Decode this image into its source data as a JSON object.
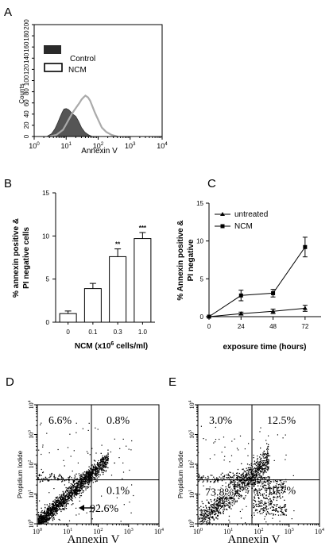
{
  "chart_data": [
    {
      "id": "A",
      "panel_label": "A",
      "type": "area",
      "xlabel": "Annexin V",
      "ylabel": "Counts",
      "x_scale": "log",
      "xlim": [
        1,
        10000
      ],
      "x_ticks": [
        {
          "b": "10",
          "e": "0"
        },
        {
          "b": "10",
          "e": "1"
        },
        {
          "b": "10",
          "e": "2"
        },
        {
          "b": "10",
          "e": "3"
        },
        {
          "b": "10",
          "e": "4"
        }
      ],
      "ylim": [
        0,
        200
      ],
      "y_ticks": [
        "0",
        "20",
        "40",
        "60",
        "80",
        "100",
        "120",
        "140",
        "160",
        "180",
        "200"
      ],
      "legend": [
        "Control",
        "NCM"
      ],
      "legend_placement": "top-right",
      "series": [
        {
          "name": "Control",
          "style": "filled",
          "color": "#555555",
          "x": [
            2.5,
            3.5,
            4.5,
            5.5,
            6.5,
            7.5,
            8.5,
            10,
            12,
            14,
            16,
            18,
            20,
            24,
            30,
            38,
            50,
            65
          ],
          "y": [
            0,
            5,
            14,
            25,
            35,
            43,
            49,
            50,
            48,
            44,
            40,
            38,
            36,
            28,
            16,
            8,
            3,
            0
          ]
        },
        {
          "name": "NCM",
          "style": "outline",
          "color": "#aaaaaa",
          "x": [
            3,
            5,
            8,
            10,
            12,
            15,
            18,
            22,
            26,
            30,
            35,
            40,
            48,
            56,
            66,
            80,
            100,
            130,
            180,
            260,
            400
          ],
          "y": [
            0,
            3,
            12,
            22,
            30,
            40,
            47,
            54,
            60,
            66,
            70,
            73,
            70,
            64,
            54,
            42,
            30,
            16,
            8,
            3,
            0
          ]
        }
      ]
    },
    {
      "id": "B",
      "panel_label": "B",
      "type": "bar",
      "categories": [
        "0",
        "0.1",
        "0.3",
        "1.0"
      ],
      "values": [
        1.0,
        3.9,
        7.6,
        9.7
      ],
      "errors": [
        0.3,
        0.6,
        0.9,
        0.7
      ],
      "annotations": [
        "",
        "",
        "**",
        "***"
      ],
      "xlabel_main": "NCM (x10",
      "xlabel_sup": "6",
      "xlabel_tail": " cells/ml)",
      "ylabel_line1": "% annexin positive &",
      "ylabel_line2": "PI negative cells",
      "ylim": [
        0,
        15
      ],
      "y_ticks": [
        "0",
        "5",
        "10",
        "15"
      ]
    },
    {
      "id": "C",
      "panel_label": "C",
      "type": "line",
      "x": [
        0,
        24,
        48,
        72
      ],
      "x_ticks": [
        "0",
        "24",
        "48",
        "72"
      ],
      "xlim": [
        0,
        84
      ],
      "ylim": [
        0,
        15
      ],
      "y_ticks": [
        "0",
        "5",
        "10",
        "15"
      ],
      "xlabel": "exposure time (hours)",
      "ylabel_line1": "% Annexin positive &",
      "ylabel_line2": "PI negative",
      "legend_placement": "top-left",
      "series": [
        {
          "name": "untreated",
          "marker": "triangle",
          "values": [
            0,
            0.4,
            0.7,
            1.1
          ],
          "errors": [
            0,
            0.2,
            0.3,
            0.4
          ]
        },
        {
          "name": "NCM",
          "marker": "square",
          "values": [
            0,
            2.8,
            3.1,
            9.2
          ],
          "errors": [
            0,
            0.7,
            0.5,
            1.3
          ]
        }
      ]
    },
    {
      "id": "D",
      "panel_label": "D",
      "type": "scatter",
      "xlabel": "Annexin V",
      "ylabel": "Propidium Iodide",
      "x_scale": "log",
      "y_scale": "log",
      "xlim": [
        1,
        10000
      ],
      "ylim": [
        1,
        10000
      ],
      "x_ticks": [
        {
          "b": "10",
          "e": "0"
        },
        {
          "b": "10",
          "e": "1"
        },
        {
          "b": "10",
          "e": "2"
        },
        {
          "b": "10",
          "e": "3"
        },
        {
          "b": "10",
          "e": "4"
        }
      ],
      "y_ticks": [
        {
          "b": "10",
          "e": "0"
        },
        {
          "b": "10",
          "e": "1"
        },
        {
          "b": "10",
          "e": "2"
        },
        {
          "b": "10",
          "e": "3"
        },
        {
          "b": "10",
          "e": "4"
        }
      ],
      "quadrant_gate": {
        "x": 60,
        "y": 30
      },
      "quadrants": {
        "upper_left": "6.6%",
        "upper_right": "0.8%",
        "lower_right": "0.1%",
        "lower_left": "92.6%"
      },
      "arrow_to_lower_left": true
    },
    {
      "id": "E",
      "panel_label": "E",
      "type": "scatter",
      "xlabel": "Annexin V",
      "ylabel": "Propidium Iodide",
      "x_scale": "log",
      "y_scale": "log",
      "xlim": [
        1,
        10000
      ],
      "ylim": [
        1,
        10000
      ],
      "x_ticks": [
        {
          "b": "10",
          "e": "0"
        },
        {
          "b": "10",
          "e": "1"
        },
        {
          "b": "10",
          "e": "2"
        },
        {
          "b": "10",
          "e": "3"
        },
        {
          "b": "10",
          "e": "4"
        }
      ],
      "y_ticks": [
        {
          "b": "10",
          "e": "0"
        },
        {
          "b": "10",
          "e": "1"
        },
        {
          "b": "10",
          "e": "2"
        },
        {
          "b": "10",
          "e": "3"
        },
        {
          "b": "10",
          "e": "4"
        }
      ],
      "quadrant_gate": {
        "x": 60,
        "y": 30
      },
      "quadrants": {
        "upper_left": "3.0%",
        "upper_right": "12.5%",
        "lower_right": "10.7%",
        "lower_left": "73.8%"
      },
      "arrow_to_lower_left": false
    }
  ]
}
